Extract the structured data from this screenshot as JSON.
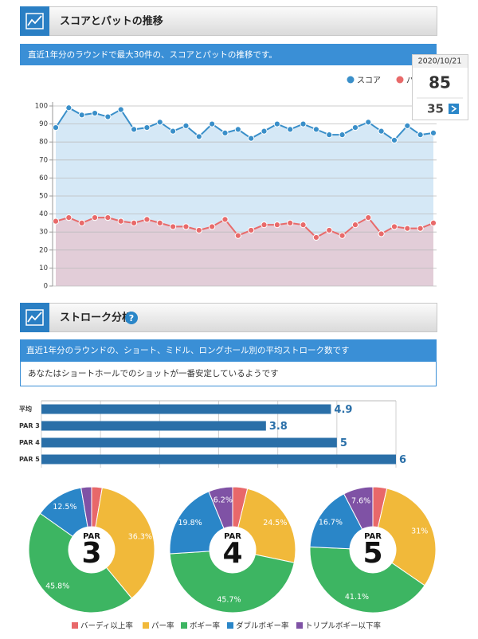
{
  "sections": [
    {
      "title": "スコアとパットの推移",
      "description": "直近1年分のラウンドで最大30件の、スコアとパットの推移です。"
    },
    {
      "title": "ストローク分析",
      "description": "直近1年分のラウンドの、ショート、ミドル、ロングホール別の平均ストローク数です",
      "message": "あなたはショートホールでのショットが一番安定しているようです"
    }
  ],
  "chart_data": [
    {
      "type": "line",
      "categories": [
        null,
        null,
        null,
        null,
        null,
        null,
        null,
        null,
        null,
        null,
        null,
        null,
        null,
        null,
        null,
        null,
        null,
        null,
        null,
        null,
        null,
        null,
        null,
        null,
        null,
        null,
        null,
        null,
        null,
        null
      ],
      "series": [
        {
          "name": "スコア",
          "color": "#3a8fc9",
          "area_color": "#d5e8f6",
          "values": [
            88,
            99,
            95,
            96,
            94,
            98,
            87,
            88,
            91,
            86,
            89,
            83,
            90,
            85,
            87,
            82,
            86,
            90,
            87,
            90,
            87,
            84,
            84,
            88,
            91,
            86,
            81,
            89,
            84,
            85
          ]
        },
        {
          "name": "パット",
          "color": "#e86a6a",
          "area_color": "#e2cdd8",
          "values": [
            36,
            38,
            35,
            38,
            38,
            36,
            35,
            37,
            35,
            33,
            33,
            31,
            33,
            37,
            28,
            31,
            34,
            34,
            35,
            34,
            27,
            31,
            28,
            34,
            38,
            29,
            33,
            32,
            32,
            35
          ]
        }
      ],
      "ylim": [
        0,
        100
      ],
      "yticks": [
        0,
        10,
        20,
        30,
        40,
        50,
        60,
        70,
        80,
        90,
        100
      ],
      "grid": true,
      "legend": "top-right",
      "tooltip": {
        "label": "2020/10/21",
        "index": 29
      }
    },
    {
      "type": "hbar",
      "categories": [
        "平均",
        "PAR 3",
        "PAR 4",
        "PAR 5"
      ],
      "values": [
        4.9,
        3.8,
        5,
        6
      ],
      "color": "#2a6fa8",
      "xlim": [
        0,
        6
      ],
      "xticks": [
        0,
        1,
        2,
        3,
        4,
        5,
        6
      ],
      "grid": true
    },
    {
      "type": "pie",
      "donut": true,
      "categories": [
        "バーディ以上率",
        "パー率",
        "ボギー率",
        "ダブルボギー率",
        "トリプルボギー以下率"
      ],
      "colors": [
        "#e8686a",
        "#f1b93a",
        "#3db562",
        "#2a86c8",
        "#7f52a5"
      ],
      "legend": "bottom",
      "series": [
        {
          "name": "PAR",
          "label": "3",
          "values": [
            2.7,
            36.3,
            45.8,
            12.5,
            2.7
          ],
          "value_labels": [
            null,
            "36.3%",
            "45.8%",
            "12.5%",
            null
          ]
        },
        {
          "name": "PAR",
          "label": "4",
          "values": [
            3.8,
            24.5,
            45.7,
            19.8,
            6.2
          ],
          "value_labels": [
            null,
            "24.5%",
            "45.7%",
            "19.8%",
            "6.2%"
          ]
        },
        {
          "name": "PAR",
          "label": "5",
          "values": [
            3.6,
            31,
            41.1,
            16.7,
            7.6
          ],
          "value_labels": [
            null,
            "31%",
            "41.1%",
            "16.7%",
            "7.6%"
          ]
        }
      ]
    }
  ]
}
